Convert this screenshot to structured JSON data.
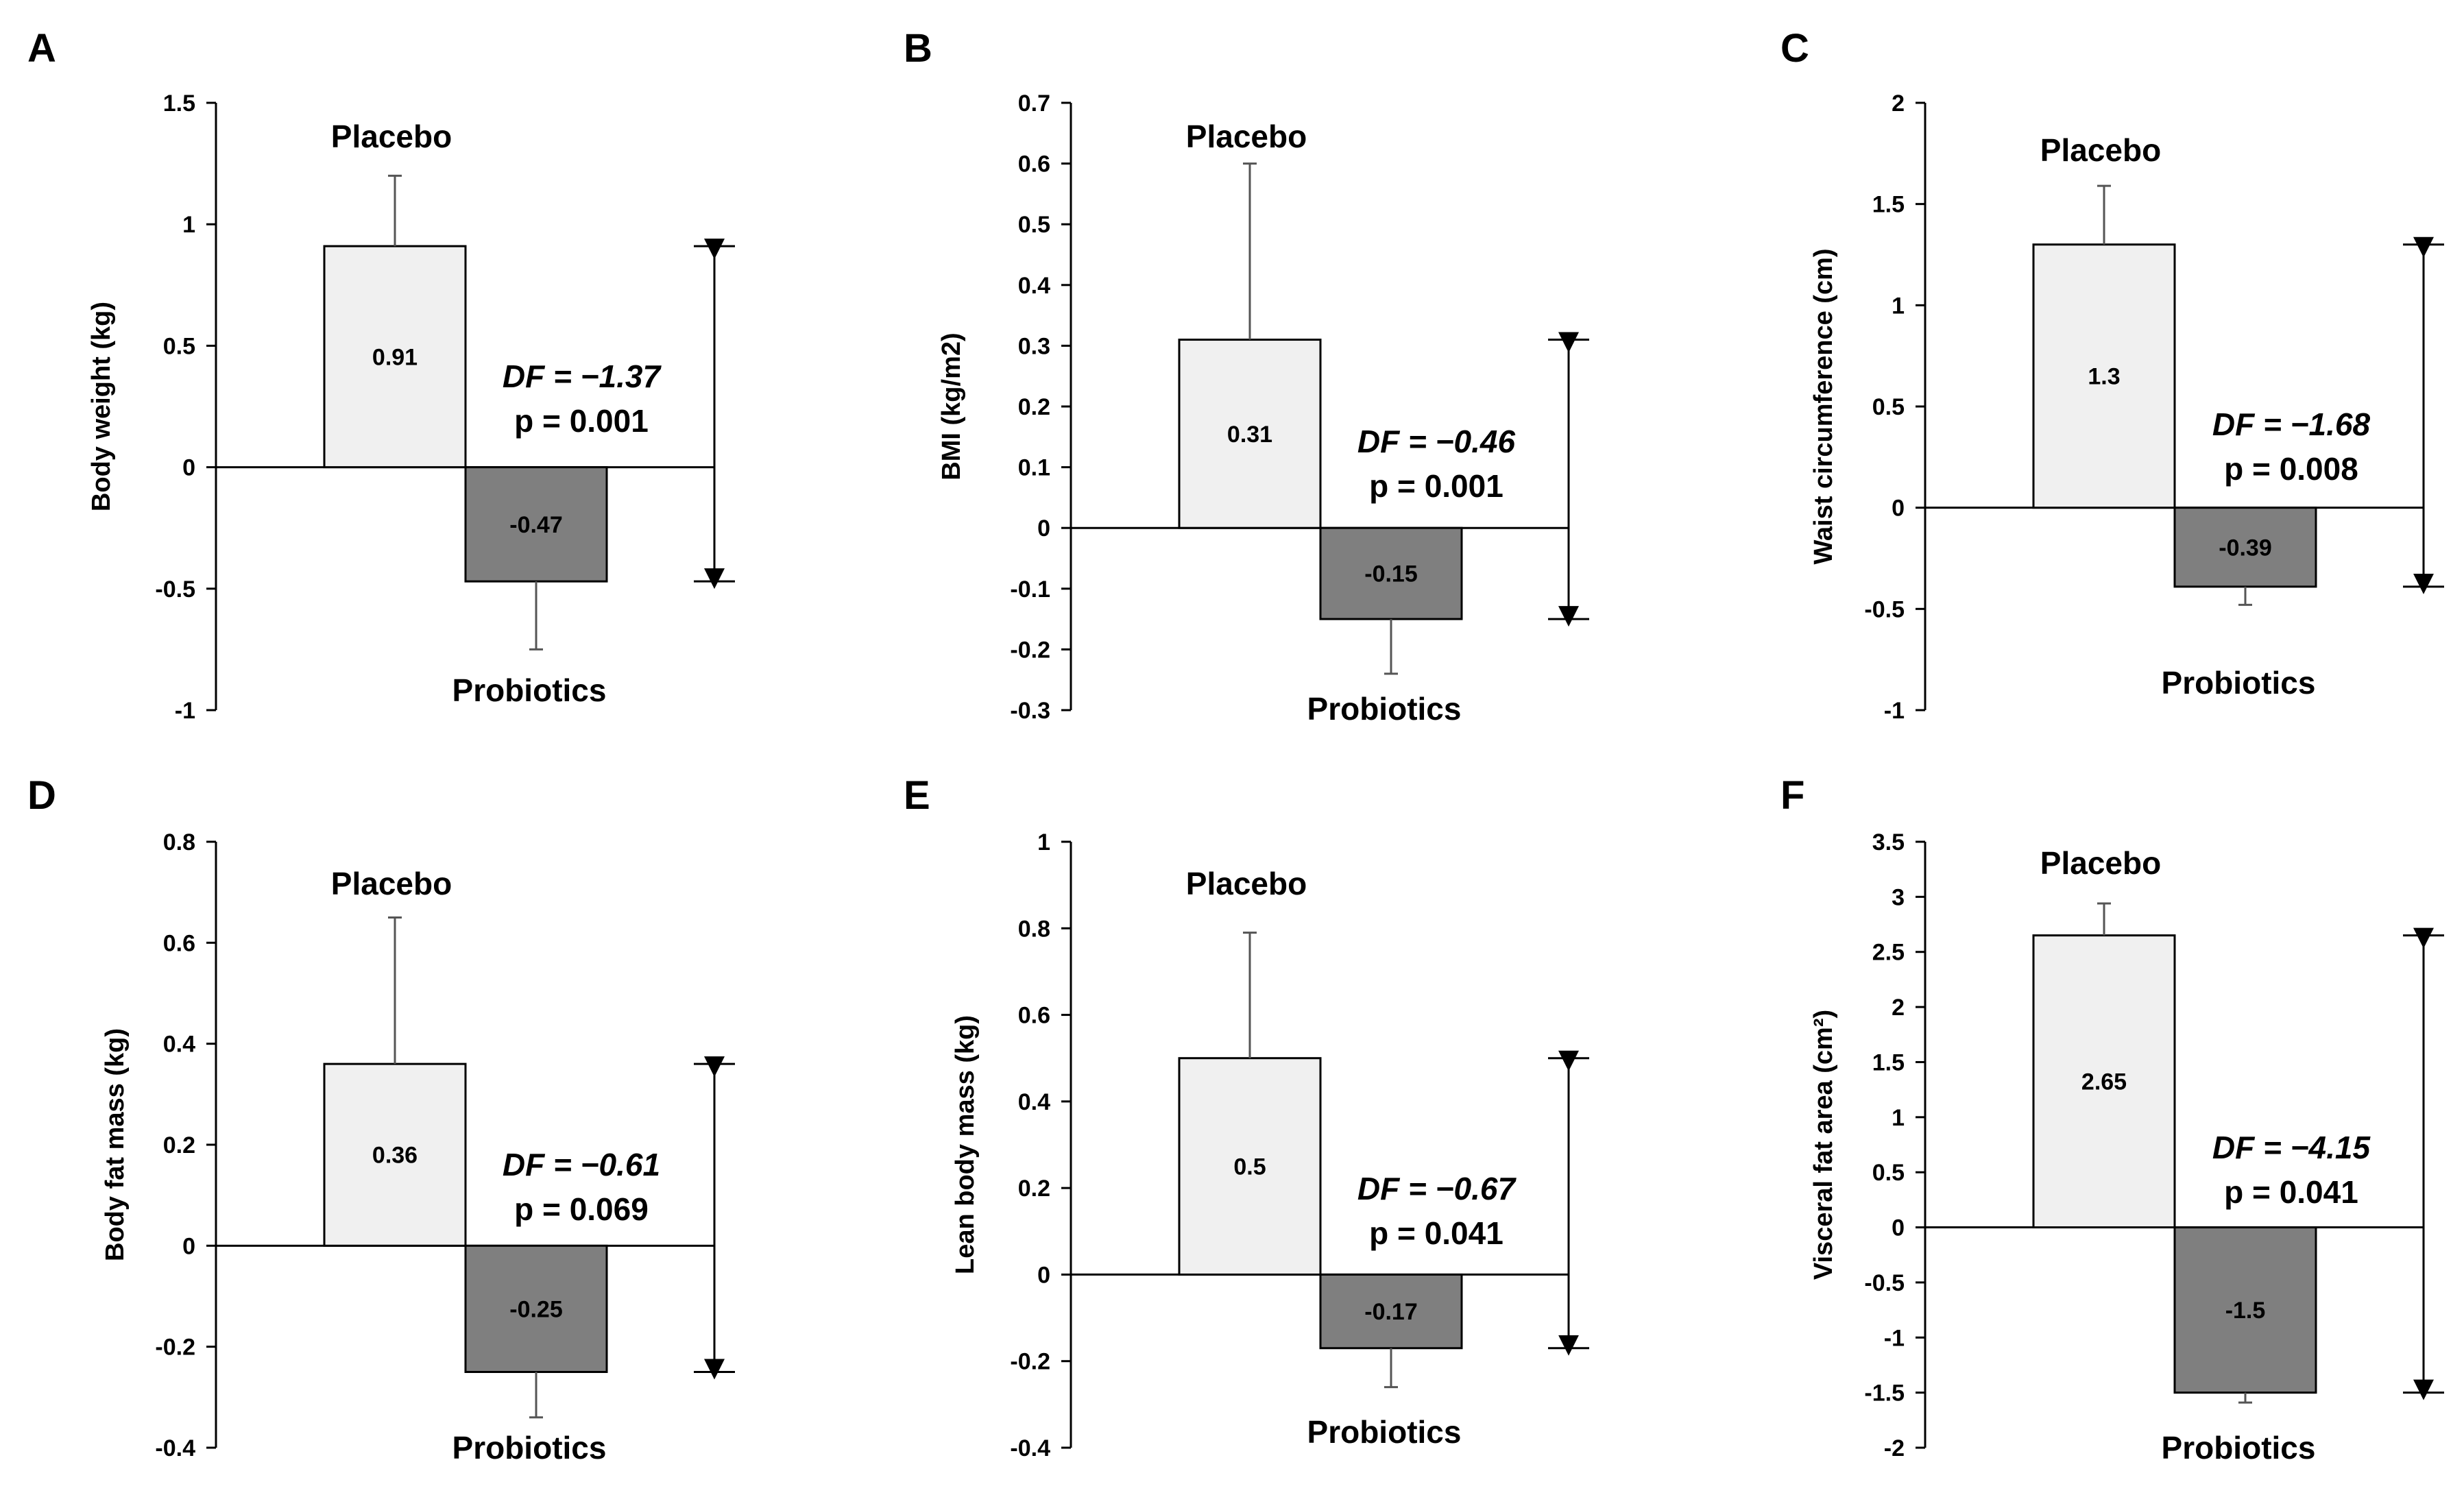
{
  "figure": {
    "background": "#ffffff",
    "axis_color": "#000000"
  },
  "chart_data": [
    {
      "panel": "A",
      "type": "bar",
      "ylabel": "Body weight (kg)",
      "ylim": [
        -1,
        1.5
      ],
      "yticks": [
        -1,
        -0.5,
        0,
        0.5,
        1,
        1.5
      ],
      "ytick_labels": [
        "-1",
        "-0.5",
        "0",
        "0.5",
        "1",
        "1.5"
      ],
      "categories": [
        "Placebo",
        "Probiotics"
      ],
      "values": [
        0.91,
        -0.47
      ],
      "value_labels": [
        "0.91",
        "-0.47"
      ],
      "error": [
        0.29,
        0.28
      ],
      "colors": [
        "#f0f0f0",
        "#7f7f7f"
      ],
      "df_label": "DF = −1.37",
      "p_label": "p = 0.001"
    },
    {
      "panel": "B",
      "type": "bar",
      "ylabel": "BMI (kg/m2)",
      "ylim": [
        -0.3,
        0.7
      ],
      "yticks": [
        -0.3,
        -0.2,
        -0.1,
        0,
        0.1,
        0.2,
        0.3,
        0.4,
        0.5,
        0.6,
        0.7
      ],
      "ytick_labels": [
        "-0.3",
        "-0.2",
        "-0.1",
        "0",
        "0.1",
        "0.2",
        "0.3",
        "0.4",
        "0.5",
        "0.6",
        "0.7"
      ],
      "categories": [
        "Placebo",
        "Probiotics"
      ],
      "values": [
        0.31,
        -0.15
      ],
      "value_labels": [
        "0.31",
        "-0.15"
      ],
      "error": [
        0.29,
        0.09
      ],
      "colors": [
        "#f0f0f0",
        "#7f7f7f"
      ],
      "df_label": "DF = −0.46",
      "p_label": "p = 0.001"
    },
    {
      "panel": "C",
      "type": "bar",
      "ylabel": "Waist circumference (cm)",
      "ylim": [
        -1,
        2
      ],
      "yticks": [
        -1,
        -0.5,
        0,
        0.5,
        1,
        1.5,
        2
      ],
      "ytick_labels": [
        "-1",
        "-0.5",
        "0",
        "0.5",
        "1",
        "1.5",
        "2"
      ],
      "categories": [
        "Placebo",
        "Probiotics"
      ],
      "values": [
        1.3,
        -0.39
      ],
      "value_labels": [
        "1.3",
        "-0.39"
      ],
      "error": [
        0.29,
        0.09
      ],
      "colors": [
        "#f0f0f0",
        "#7f7f7f"
      ],
      "df_label": "DF = −1.68",
      "p_label": "p = 0.008"
    },
    {
      "panel": "D",
      "type": "bar",
      "ylabel": "Body fat mass (kg)",
      "ylim": [
        -0.4,
        0.8
      ],
      "yticks": [
        -0.4,
        -0.2,
        0,
        0.2,
        0.4,
        0.6,
        0.8
      ],
      "ytick_labels": [
        "-0.4",
        "-0.2",
        "0",
        "0.2",
        "0.4",
        "0.6",
        "0.8"
      ],
      "categories": [
        "Placebo",
        "Probiotics"
      ],
      "values": [
        0.36,
        -0.25
      ],
      "value_labels": [
        "0.36",
        "-0.25"
      ],
      "error": [
        0.29,
        0.09
      ],
      "colors": [
        "#f0f0f0",
        "#7f7f7f"
      ],
      "df_label": "DF = −0.61",
      "p_label": "p = 0.069"
    },
    {
      "panel": "E",
      "type": "bar",
      "ylabel": "Lean body mass (kg)",
      "ylim": [
        -0.4,
        1
      ],
      "yticks": [
        -0.4,
        -0.2,
        0,
        0.2,
        0.4,
        0.6,
        0.8,
        1
      ],
      "ytick_labels": [
        "-0.4",
        "-0.2",
        "0",
        "0.2",
        "0.4",
        "0.6",
        "0.8",
        "1"
      ],
      "categories": [
        "Placebo",
        "Probiotics"
      ],
      "values": [
        0.5,
        -0.17
      ],
      "value_labels": [
        "0.5",
        "-0.17"
      ],
      "error": [
        0.29,
        0.09
      ],
      "colors": [
        "#f0f0f0",
        "#7f7f7f"
      ],
      "df_label": "DF = −0.67",
      "p_label": "p = 0.041"
    },
    {
      "panel": "F",
      "type": "bar",
      "ylabel": "Visceral fat area (cm²)",
      "ylim": [
        -2,
        3.5
      ],
      "yticks": [
        -2,
        -1.5,
        -1,
        -0.5,
        0,
        0.5,
        1,
        1.5,
        2,
        2.5,
        3,
        3.5
      ],
      "ytick_labels": [
        "-2",
        "-1.5",
        "-1",
        "-0.5",
        "0",
        "0.5",
        "1",
        "1.5",
        "2",
        "2.5",
        "3",
        "3.5"
      ],
      "categories": [
        "Placebo",
        "Probiotics"
      ],
      "values": [
        2.65,
        -1.5
      ],
      "value_labels": [
        "2.65",
        "-1.5"
      ],
      "error": [
        0.29,
        0.09
      ],
      "colors": [
        "#f0f0f0",
        "#7f7f7f"
      ],
      "df_label": "DF = −4.15",
      "p_label": "p = 0.041"
    }
  ]
}
